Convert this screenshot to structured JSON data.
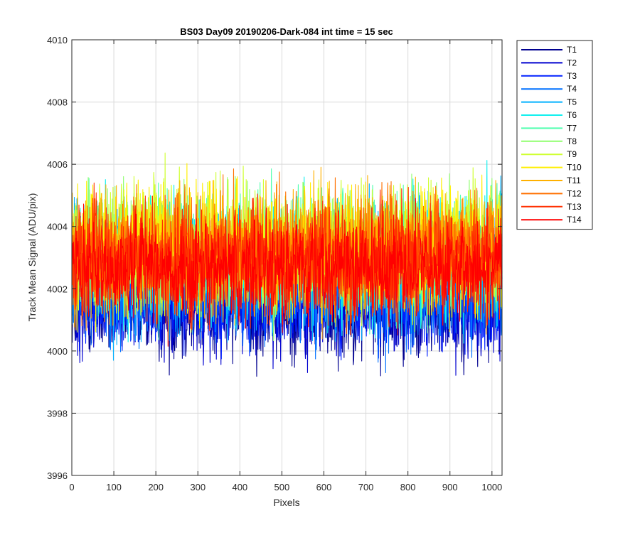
{
  "chart_data": {
    "type": "line",
    "title": "BS03 Day09 20190206-Dark-084 int time = 15 sec",
    "xlabel": "Pixels",
    "ylabel": "Track Mean Signal (ADU/pix)",
    "xlim": [
      0,
      1024
    ],
    "ylim": [
      3996,
      4010
    ],
    "xticks": [
      0,
      100,
      200,
      300,
      400,
      500,
      600,
      700,
      800,
      900,
      1000
    ],
    "yticks": [
      3996,
      3998,
      4000,
      4002,
      4004,
      4006,
      4008,
      4010
    ],
    "grid": true,
    "legend_position": "outside-top-right",
    "x_points": 1024,
    "series": [
      {
        "name": "T1",
        "color": "#00008f",
        "mean": 4001.4,
        "spread": 0.85
      },
      {
        "name": "T2",
        "color": "#0000cf",
        "mean": 4001.6,
        "spread": 0.85
      },
      {
        "name": "T3",
        "color": "#0020ff",
        "mean": 4001.8,
        "spread": 0.85
      },
      {
        "name": "T4",
        "color": "#0070ff",
        "mean": 4002.2,
        "spread": 0.95
      },
      {
        "name": "T5",
        "color": "#00b0ff",
        "mean": 4002.6,
        "spread": 1.0
      },
      {
        "name": "T6",
        "color": "#10f0ef",
        "mean": 4003.0,
        "spread": 1.0
      },
      {
        "name": "T7",
        "color": "#50ffaf",
        "mean": 4003.2,
        "spread": 1.0
      },
      {
        "name": "T8",
        "color": "#90ff6f",
        "mean": 4003.3,
        "spread": 1.0
      },
      {
        "name": "T9",
        "color": "#cfff30",
        "mean": 4003.3,
        "spread": 1.0
      },
      {
        "name": "T10",
        "color": "#ffef00",
        "mean": 4003.3,
        "spread": 1.0
      },
      {
        "name": "T11",
        "color": "#ffb000",
        "mean": 4003.2,
        "spread": 1.0
      },
      {
        "name": "T12",
        "color": "#ff7000",
        "mean": 4003.1,
        "spread": 0.95
      },
      {
        "name": "T13",
        "color": "#ff3000",
        "mean": 4002.9,
        "spread": 0.9
      },
      {
        "name": "T14",
        "color": "#ff0000",
        "mean": 4002.7,
        "spread": 0.85
      }
    ]
  }
}
